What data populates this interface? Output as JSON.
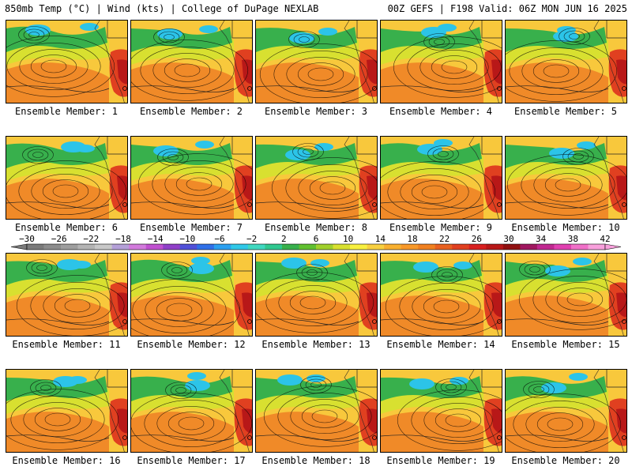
{
  "header": {
    "left": "850mb Temp (°C) | Wind (kts) | College of DuPage NEXLAB",
    "right": "00Z GEFS | F198 Valid: 06Z MON JUN 16 2025"
  },
  "panels": [
    {
      "label": "Ensemble Member: 1"
    },
    {
      "label": "Ensemble Member: 2"
    },
    {
      "label": "Ensemble Member: 3"
    },
    {
      "label": "Ensemble Member: 4"
    },
    {
      "label": "Ensemble Member: 5"
    },
    {
      "label": "Ensemble Member: 6"
    },
    {
      "label": "Ensemble Member: 7"
    },
    {
      "label": "Ensemble Member: 8"
    },
    {
      "label": "Ensemble Member: 9"
    },
    {
      "label": "Ensemble Member: 10"
    },
    {
      "label": "Ensemble Member: 11"
    },
    {
      "label": "Ensemble Member: 12"
    },
    {
      "label": "Ensemble Member: 13"
    },
    {
      "label": "Ensemble Member: 14"
    },
    {
      "label": "Ensemble Member: 15"
    },
    {
      "label": "Ensemble Member: 16"
    },
    {
      "label": "Ensemble Member: 17"
    },
    {
      "label": "Ensemble Member: 18"
    },
    {
      "label": "Ensemble Member: 19"
    },
    {
      "label": "Ensemble Member: 20"
    }
  ],
  "colorbar": {
    "labels": [
      "−30",
      "−26",
      "−22",
      "−18",
      "−14",
      "−10",
      "−6",
      "−2",
      "2",
      "6",
      "10",
      "14",
      "18",
      "22",
      "26",
      "30",
      "34",
      "38",
      "42"
    ],
    "colors": [
      "#7a7a7a",
      "#8c8c8c",
      "#9e9e9e",
      "#b4b4b4",
      "#c8c8c8",
      "#b4a0d8",
      "#d27adc",
      "#c050d0",
      "#9040c8",
      "#5050d8",
      "#3070e8",
      "#2ca0f0",
      "#30c8e8",
      "#40d8c0",
      "#30c890",
      "#38b04c",
      "#60c030",
      "#a0d02c",
      "#d8e030",
      "#f8f040",
      "#f8d040",
      "#f8b030",
      "#f89828",
      "#f08020",
      "#e86020",
      "#e04020",
      "#d82020",
      "#b81818",
      "#901010",
      "#a01860",
      "#c02890",
      "#e040b0",
      "#f070c8",
      "#f8a0dc"
    ]
  },
  "map_colors": {
    "cold": "#2cc4e8",
    "cool": "#38b04c",
    "mild": "#d8e030",
    "warm": "#f8c83c",
    "hot": "#f08a28",
    "very_hot": "#e04020"
  }
}
